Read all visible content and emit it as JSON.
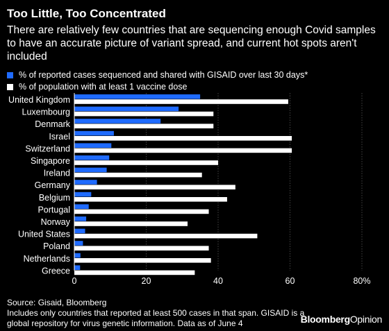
{
  "header": {
    "title": "Too Little, Too Concentrated",
    "subtitle": "There are relatively few countries that are sequencing enough Covid samples to have an accurate picture of variant spread, and current hot spots aren't included"
  },
  "footer": {
    "source": "Source: Gisaid, Bloomberg",
    "note": "Includes only countries that reported at least 500 cases in that span. GISAID is a global repository for virus genetic information. Data as of June 4",
    "brand_bold": "Bloomberg",
    "brand_light": "Opinion"
  },
  "chart_data": {
    "type": "bar",
    "orientation": "horizontal",
    "title": "Too Little, Too Concentrated",
    "xlim": [
      0,
      80
    ],
    "xticks": [
      "0",
      "20",
      "40",
      "60",
      "80%"
    ],
    "grid": true,
    "legend_position": "top-left",
    "categories": [
      "United Kingdom",
      "Luxembourg",
      "Denmark",
      "Israel",
      "Switzerland",
      "Singapore",
      "Ireland",
      "Germany",
      "Belgium",
      "Portugal",
      "Norway",
      "United States",
      "Poland",
      "Netherlands",
      "Greece"
    ],
    "series": [
      {
        "name": "% of reported cases sequenced and shared with GISAID over last 30 days*",
        "color": "#1f6bff",
        "values": [
          35,
          29,
          24,
          11,
          10.3,
          9.7,
          9,
          6.3,
          4.7,
          4,
          3.3,
          3,
          2.4,
          1.7,
          1.6
        ]
      },
      {
        "name": "% of population with at least 1 vaccine dose",
        "color": "#ffffff",
        "values": [
          59.5,
          38.7,
          38.7,
          60.5,
          60.5,
          40,
          35.5,
          44.8,
          42.5,
          37.4,
          31.5,
          50.9,
          37.4,
          38,
          33.5
        ]
      }
    ]
  }
}
